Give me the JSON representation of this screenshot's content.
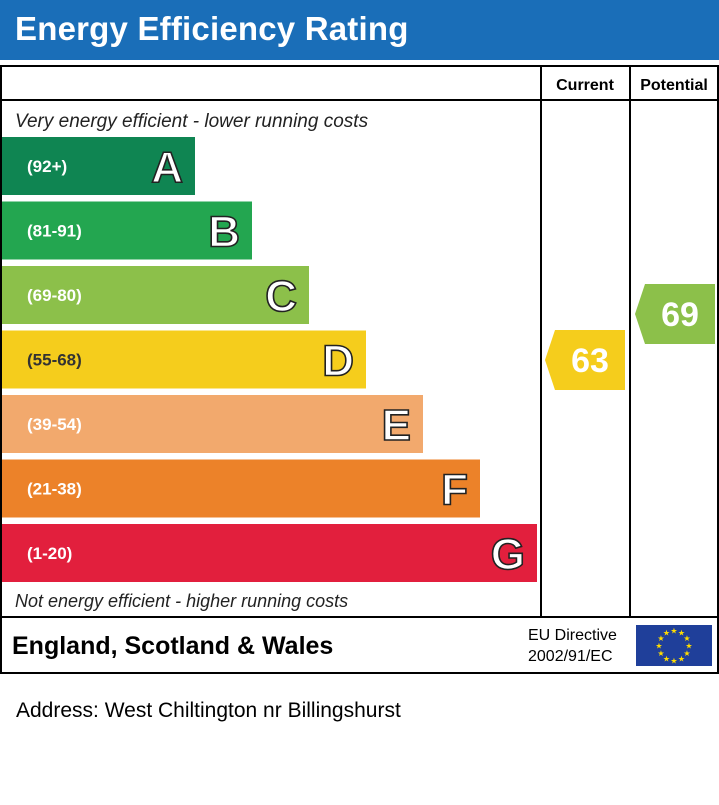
{
  "header": {
    "title": "Energy Efficiency Rating"
  },
  "columns": {
    "current": "Current",
    "potential": "Potential"
  },
  "notes": {
    "top": "Very energy efficient - lower running costs",
    "bottom": "Not energy efficient - higher running costs"
  },
  "footer": {
    "region": "England, Scotland & Wales",
    "directive_line1": "EU Directive",
    "directive_line2": "2002/91/EC"
  },
  "address": "Address: West Chiltington nr Billingshurst",
  "chart_data": {
    "type": "bar",
    "categories": [
      "A",
      "B",
      "C",
      "D",
      "E",
      "F",
      "G"
    ],
    "bands": [
      {
        "letter": "A",
        "range": "(92+)",
        "color": "#0f8552"
      },
      {
        "letter": "B",
        "range": "(81-91)",
        "color": "#23a650"
      },
      {
        "letter": "C",
        "range": "(69-80)",
        "color": "#8cc04a"
      },
      {
        "letter": "D",
        "range": "(55-68)",
        "color": "#f5cd1c"
      },
      {
        "letter": "E",
        "range": "(39-54)",
        "color": "#f2a96d"
      },
      {
        "letter": "F",
        "range": "(21-38)",
        "color": "#ec8229"
      },
      {
        "letter": "G",
        "range": "(1-20)",
        "color": "#e21f3d"
      }
    ],
    "current": {
      "value": 63,
      "band": "D",
      "color": "#f5cd1c"
    },
    "potential": {
      "value": 69,
      "band": "C",
      "color": "#8cc04a"
    }
  },
  "colors": {
    "header": "#1a6eb8",
    "eu_flag": "#1f3f9a",
    "eu_stars": "#ffdd00"
  }
}
